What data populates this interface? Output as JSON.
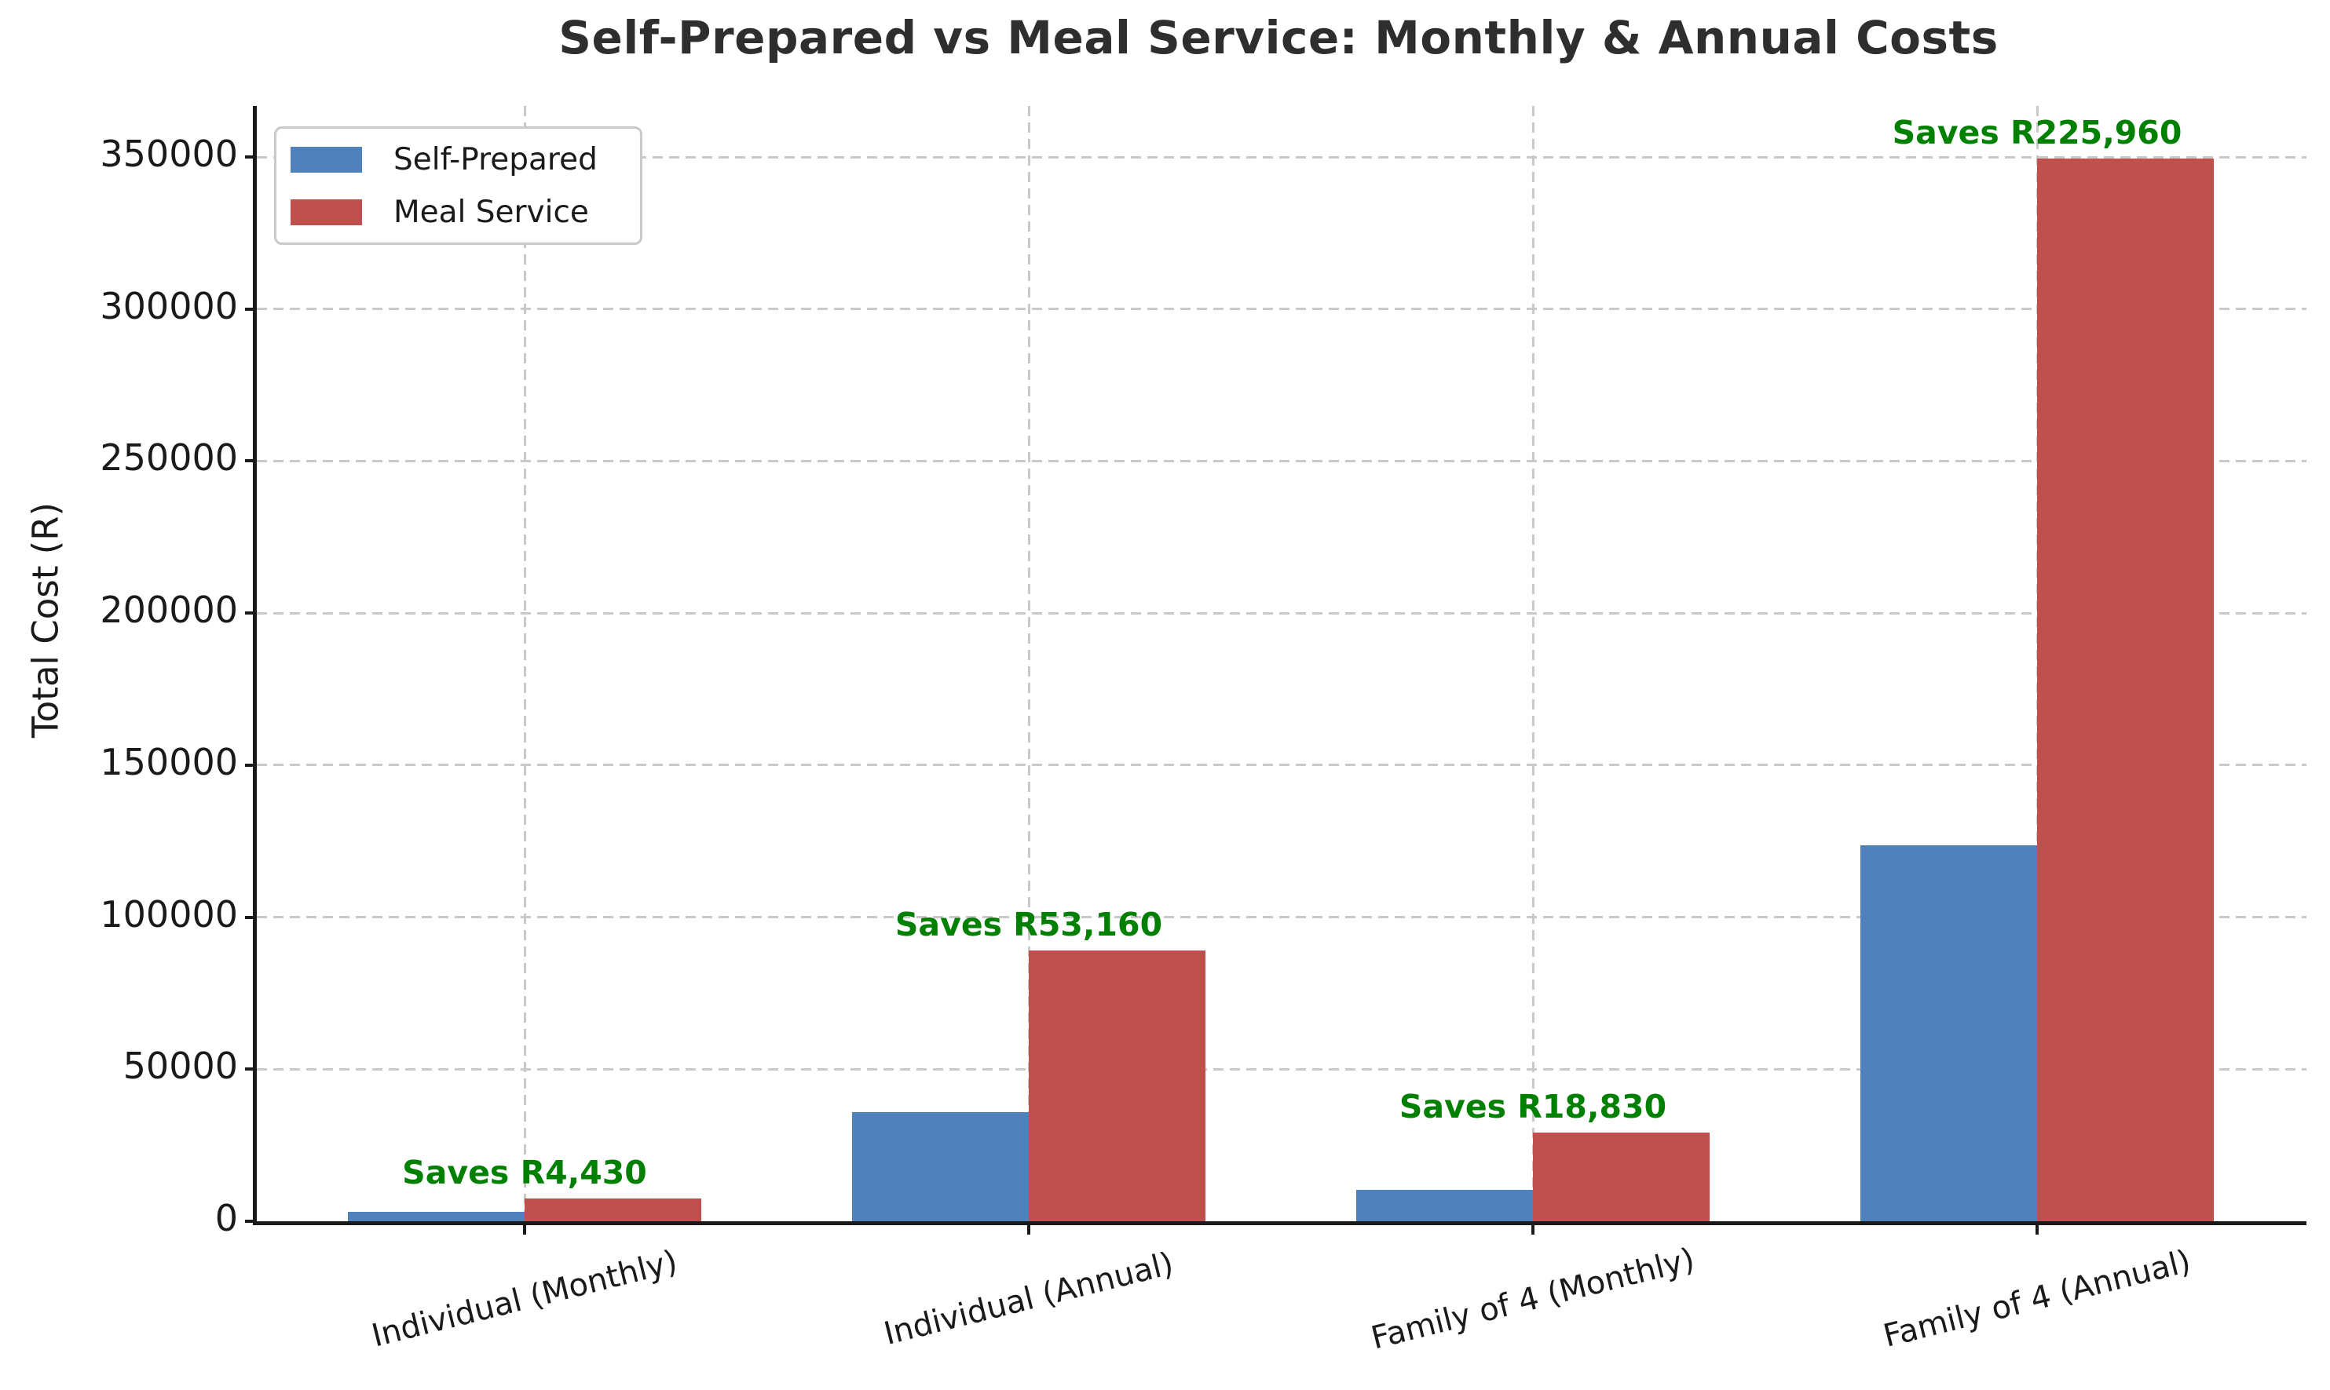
{
  "chart_data": {
    "type": "bar",
    "title": "Self-Prepared vs Meal Service: Monthly & Annual Costs",
    "xlabel": "",
    "ylabel": "Total Cost (R)",
    "categories": [
      "Individual (Monthly)",
      "Individual (Annual)",
      "Family of 4 (Monthly)",
      "Family of 4 (Annual)"
    ],
    "series": [
      {
        "name": "Self-Prepared",
        "color": "#4F81BD",
        "values": [
          3000,
          36000,
          10300,
          123600
        ]
      },
      {
        "name": "Meal Service",
        "color": "#C0504D",
        "values": [
          7430,
          89160,
          29130,
          349560
        ]
      }
    ],
    "annotations": [
      {
        "text": "Saves R4,430",
        "value": 4430,
        "category_index": 0
      },
      {
        "text": "Saves R53,160",
        "value": 53160,
        "category_index": 1
      },
      {
        "text": "Saves R18,830",
        "value": 18830,
        "category_index": 2
      },
      {
        "text": "Saves R225,960",
        "value": 225960,
        "category_index": 3
      }
    ],
    "yticks": [
      0,
      50000,
      100000,
      150000,
      200000,
      250000,
      300000,
      350000
    ],
    "ylim": [
      0,
      367000
    ],
    "grid": true,
    "legend_position": "upper left",
    "colors": {
      "annotation_green": "#008000",
      "grid": "#c9c9c9",
      "axis": "#1a1a1a",
      "title": "#2e2e2e"
    }
  }
}
